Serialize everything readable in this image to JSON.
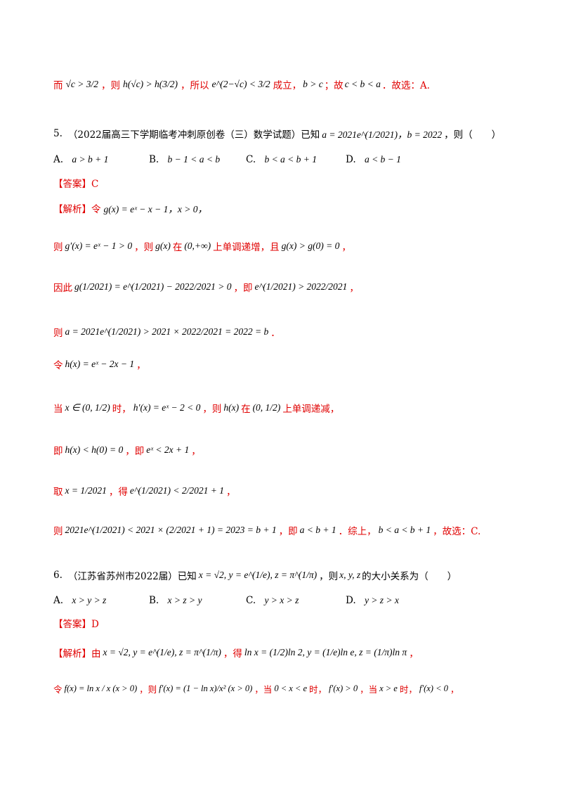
{
  "lines": {
    "l1_a": "而",
    "l1_math1": "√c > 3/2",
    "l1_b": "，则",
    "l1_math2": "h(√c) > h(3/2)",
    "l1_c": "，所以",
    "l1_math3": "e^(2−√c) < 3/2",
    "l1_d": "成立，",
    "l1_math4": "b > c",
    "l1_e": "；故",
    "l1_math5": "c < b < a",
    "l1_f": "．故选：A.",
    "q5_num": "5.",
    "q5_src": "（2022届高三下学期临考冲刺原创卷（三）数学试题）已知",
    "q5_math": "a = 2021e^(1/2021)，b = 2022",
    "q5_tail": "，则（　　）",
    "q5_optA_label": "A.",
    "q5_optA": "a > b + 1",
    "q5_optB_label": "B.",
    "q5_optB": "b − 1 < a < b",
    "q5_optC_label": "C.",
    "q5_optC": "b < a < b + 1",
    "q5_optD_label": "D.",
    "q5_optD": "a < b − 1",
    "q5_answer": "【答案】C",
    "q5_jx_label": "【解析】",
    "q5_jx_ling": "令",
    "q5_s1": "g(x) = eˣ − x − 1，x > 0，",
    "q5_s2_a": "则",
    "q5_s2_m1": "g′(x) = eˣ − 1 > 0",
    "q5_s2_b": "，则",
    "q5_s2_m2": "g(x)",
    "q5_s2_c": "在",
    "q5_s2_m3": "(0,+∞)",
    "q5_s2_d": "上单调递增，且",
    "q5_s2_m4": "g(x) > g(0) = 0",
    "q5_s2_e": "，",
    "q5_s3_a": "因此",
    "q5_s3_m1": "g(1/2021) = e^(1/2021) − 2022/2021 > 0",
    "q5_s3_b": "，即",
    "q5_s3_m2": "e^(1/2021) > 2022/2021",
    "q5_s3_c": "，",
    "q5_s4_a": "则",
    "q5_s4_m": "a = 2021e^(1/2021) > 2021 × 2022/2021 = 2022 = b",
    "q5_s4_b": "．",
    "q5_s5_a": "令",
    "q5_s5_m": "h(x) = eˣ − 2x − 1",
    "q5_s5_b": "，",
    "q5_s6_a": "当",
    "q5_s6_m1": "x ∈ (0, 1/2)",
    "q5_s6_b": "时，",
    "q5_s6_m2": "h′(x) = eˣ − 2 < 0",
    "q5_s6_c": "，则",
    "q5_s6_m3": "h(x)",
    "q5_s6_d": "在",
    "q5_s6_m4": "(0, 1/2)",
    "q5_s6_e": "上单调递减，",
    "q5_s7_a": "即",
    "q5_s7_m1": "h(x) < h(0) = 0",
    "q5_s7_b": "，即",
    "q5_s7_m2": "eˣ < 2x + 1",
    "q5_s7_c": "，",
    "q5_s8_a": "取",
    "q5_s8_m1": "x = 1/2021",
    "q5_s8_b": "，得",
    "q5_s8_m2": "e^(1/2021) < 2/2021 + 1",
    "q5_s8_c": "，",
    "q5_s9_a": "则",
    "q5_s9_m1": "2021e^(1/2021) < 2021 × (2/2021 + 1) = 2023 = b + 1",
    "q5_s9_b": "，即",
    "q5_s9_m2": "a < b + 1",
    "q5_s9_c": "．综上，",
    "q5_s9_m3": "b < a < b + 1",
    "q5_s9_d": "，故选：C.",
    "q6_num": "6.",
    "q6_src": "（江苏省苏州市2022届）已知",
    "q6_math": "x = √2, y = e^(1/e), z = π^(1/π)",
    "q6_mid": "，则",
    "q6_vars": "x, y, z",
    "q6_tail": "的大小关系为（　　）",
    "q6_optA_label": "A.",
    "q6_optA": "x > y > z",
    "q6_optB_label": "B.",
    "q6_optB": "x > z > y",
    "q6_optC_label": "C.",
    "q6_optC": "y > x > z",
    "q6_optD_label": "D.",
    "q6_optD": "y > z > x",
    "q6_answer": "【答案】D",
    "q6_jx_label": "【解析】",
    "q6_s1_a": "由",
    "q6_s1_m1": "x = √2, y = e^(1/e), z = π^(1/π)",
    "q6_s1_b": "，得",
    "q6_s1_m2": "ln x = (1/2)ln 2, y = (1/e)ln e, z = (1/π)ln π",
    "q6_s1_c": "，",
    "q6_s2_a": "令",
    "q6_s2_m1": "f(x) = ln x / x (x > 0)",
    "q6_s2_b": "，则",
    "q6_s2_m2": "f′(x) = (1 − ln x)/x² (x > 0)",
    "q6_s2_c": "，当",
    "q6_s2_m3": "0 < x < e",
    "q6_s2_d": "时，",
    "q6_s2_m4": "f′(x) > 0",
    "q6_s2_e": "，当",
    "q6_s2_m5": "x > e",
    "q6_s2_f": "时，",
    "q6_s2_m6": "f′(x) < 0",
    "q6_s2_g": "，"
  }
}
